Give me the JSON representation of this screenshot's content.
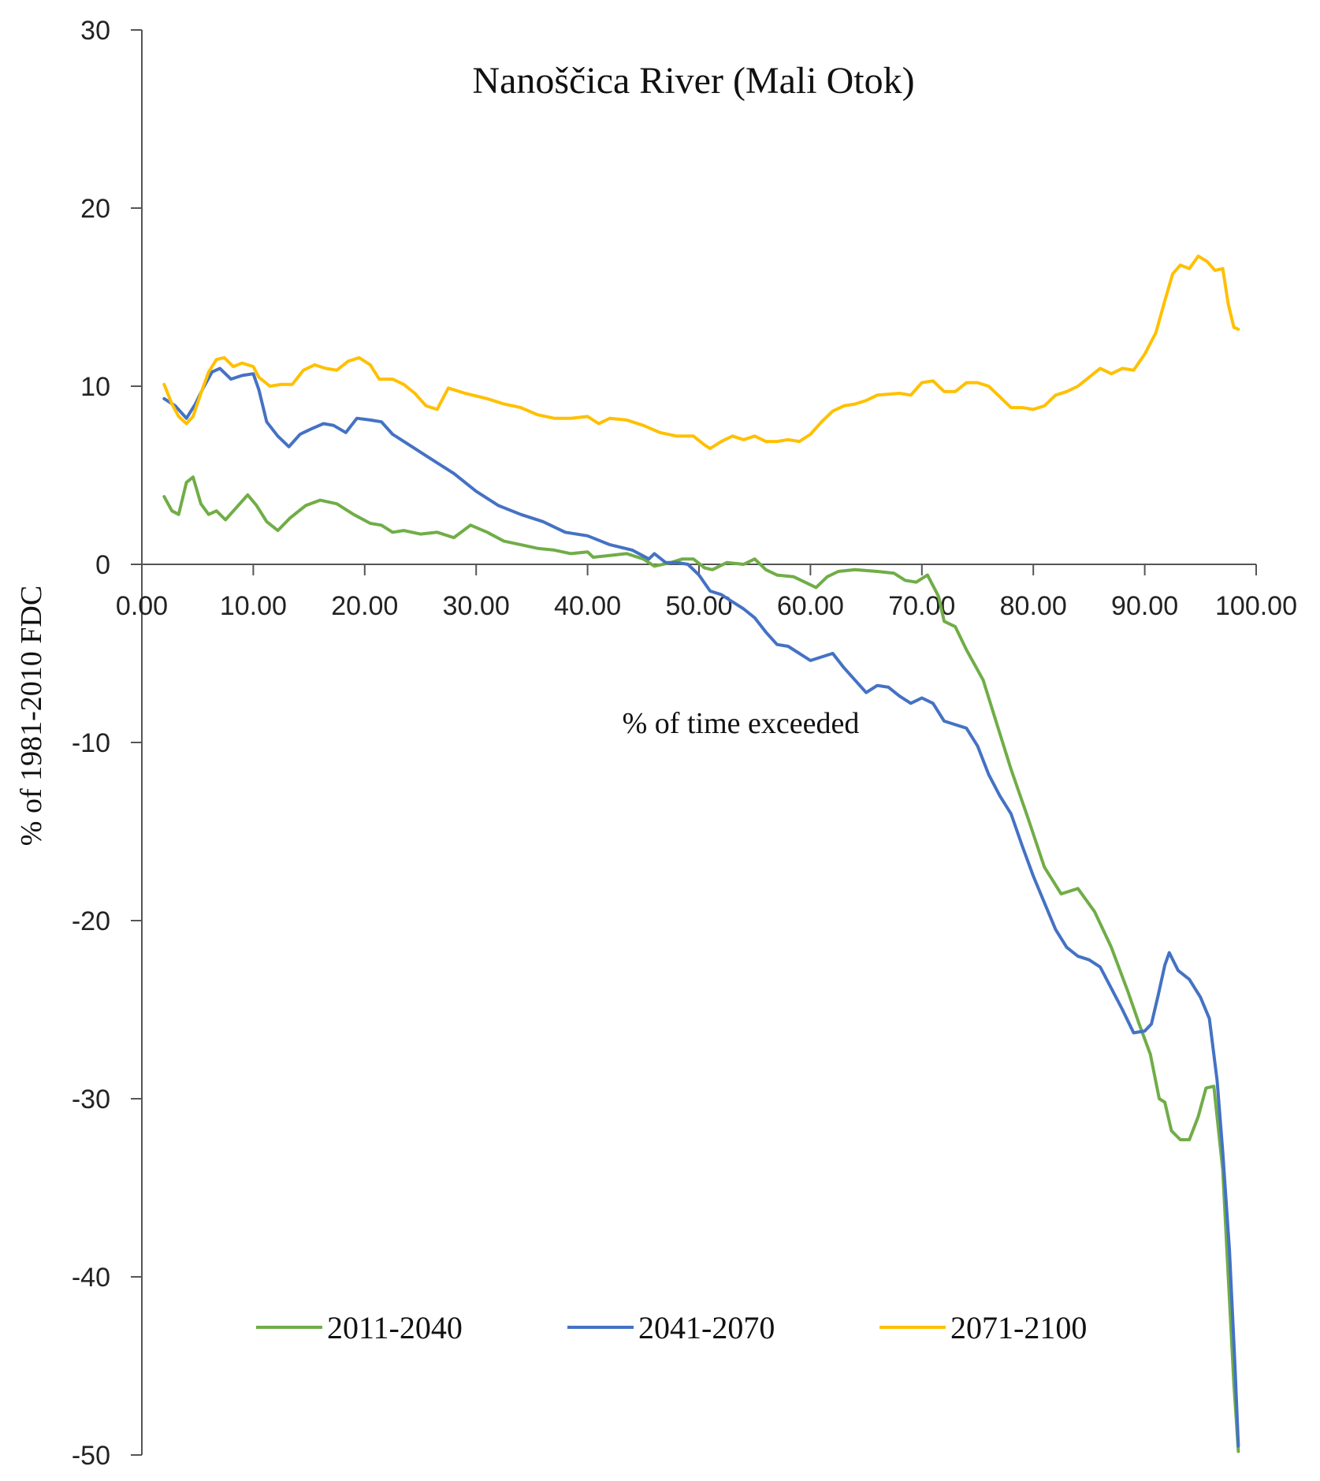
{
  "chart_data": {
    "type": "line",
    "title": "Nanoščica River (Mali Otok)",
    "xlabel": "% of time exceeded",
    "ylabel": "% of 1981-2010 FDC",
    "xlim": [
      0,
      100
    ],
    "ylim": [
      -50,
      30
    ],
    "x_ticks": [
      "0.00",
      "10.00",
      "20.00",
      "30.00",
      "40.00",
      "50.00",
      "60.00",
      "70.00",
      "80.00",
      "90.00",
      "100.00"
    ],
    "y_ticks": [
      "30",
      "20",
      "10",
      "0",
      "-10",
      "-20",
      "-30",
      "-40",
      "-50"
    ],
    "legend_position": "bottom",
    "series": [
      {
        "name": "2011-2040",
        "color": "#70ad47",
        "points": [
          [
            2,
            3.8
          ],
          [
            2.7,
            3.0
          ],
          [
            3.3,
            2.8
          ],
          [
            4,
            4.6
          ],
          [
            4.6,
            4.9
          ],
          [
            5.3,
            3.4
          ],
          [
            6,
            2.8
          ],
          [
            6.7,
            3.0
          ],
          [
            7.5,
            2.5
          ],
          [
            8.5,
            3.2
          ],
          [
            9.5,
            3.9
          ],
          [
            10.3,
            3.3
          ],
          [
            11.2,
            2.4
          ],
          [
            12.2,
            1.9
          ],
          [
            13.3,
            2.6
          ],
          [
            14.7,
            3.3
          ],
          [
            16,
            3.6
          ],
          [
            17.5,
            3.4
          ],
          [
            19,
            2.8
          ],
          [
            20.5,
            2.3
          ],
          [
            21.5,
            2.2
          ],
          [
            22.5,
            1.8
          ],
          [
            23.5,
            1.9
          ],
          [
            25,
            1.7
          ],
          [
            26.5,
            1.8
          ],
          [
            28,
            1.5
          ],
          [
            29.5,
            2.2
          ],
          [
            31,
            1.8
          ],
          [
            32.5,
            1.3
          ],
          [
            34,
            1.1
          ],
          [
            35.5,
            0.9
          ],
          [
            37,
            0.8
          ],
          [
            38.5,
            0.6
          ],
          [
            40,
            0.7
          ],
          [
            40.5,
            0.4
          ],
          [
            42,
            0.5
          ],
          [
            43.5,
            0.6
          ],
          [
            45,
            0.3
          ],
          [
            46,
            -0.1
          ],
          [
            47.5,
            0.1
          ],
          [
            48.5,
            0.3
          ],
          [
            49.5,
            0.3
          ],
          [
            50.5,
            -0.2
          ],
          [
            51.2,
            -0.3
          ],
          [
            52.5,
            0.1
          ],
          [
            54,
            0.0
          ],
          [
            55,
            0.3
          ],
          [
            56,
            -0.3
          ],
          [
            57,
            -0.6
          ],
          [
            58.5,
            -0.7
          ],
          [
            59.5,
            -1.0
          ],
          [
            60.5,
            -1.3
          ],
          [
            61.5,
            -0.7
          ],
          [
            62.5,
            -0.4
          ],
          [
            64,
            -0.3
          ],
          [
            66,
            -0.4
          ],
          [
            67.5,
            -0.5
          ],
          [
            68.5,
            -0.9
          ],
          [
            69.5,
            -1.0
          ],
          [
            70.5,
            -0.6
          ],
          [
            71.5,
            -1.8
          ],
          [
            72,
            -3.2
          ],
          [
            73,
            -3.5
          ],
          [
            74,
            -4.8
          ],
          [
            75.5,
            -6.5
          ],
          [
            76.5,
            -8.5
          ],
          [
            78,
            -11.5
          ],
          [
            79.5,
            -14.2
          ],
          [
            81,
            -17.0
          ],
          [
            82.5,
            -18.5
          ],
          [
            84,
            -18.2
          ],
          [
            85.5,
            -19.5
          ],
          [
            87,
            -21.5
          ],
          [
            88.5,
            -24.0
          ],
          [
            89.5,
            -25.8
          ],
          [
            90.5,
            -27.5
          ],
          [
            91.3,
            -30.0
          ],
          [
            91.8,
            -30.2
          ],
          [
            92.4,
            -31.8
          ],
          [
            93.2,
            -32.3
          ],
          [
            94,
            -32.3
          ],
          [
            94.8,
            -31.0
          ],
          [
            95.5,
            -29.4
          ],
          [
            96.2,
            -29.3
          ],
          [
            97,
            -34.0
          ],
          [
            97.5,
            -40.0
          ],
          [
            98,
            -46.0
          ],
          [
            98.4,
            -49.8
          ]
        ]
      },
      {
        "name": "2041-2070",
        "color": "#4472c4",
        "points": [
          [
            2,
            9.3
          ],
          [
            3,
            8.9
          ],
          [
            4,
            8.2
          ],
          [
            4.8,
            9.0
          ],
          [
            5.5,
            9.9
          ],
          [
            6.3,
            10.8
          ],
          [
            7,
            11.0
          ],
          [
            8,
            10.4
          ],
          [
            9,
            10.6
          ],
          [
            10,
            10.7
          ],
          [
            10.5,
            9.8
          ],
          [
            11.2,
            8.0
          ],
          [
            12.2,
            7.2
          ],
          [
            13.2,
            6.6
          ],
          [
            14.2,
            7.3
          ],
          [
            15.2,
            7.6
          ],
          [
            16.3,
            7.9
          ],
          [
            17.2,
            7.8
          ],
          [
            18.3,
            7.4
          ],
          [
            19.3,
            8.2
          ],
          [
            20.5,
            8.1
          ],
          [
            21.5,
            8.0
          ],
          [
            22.5,
            7.3
          ],
          [
            24,
            6.7
          ],
          [
            26,
            5.9
          ],
          [
            28,
            5.1
          ],
          [
            30,
            4.1
          ],
          [
            32,
            3.3
          ],
          [
            34,
            2.8
          ],
          [
            36,
            2.4
          ],
          [
            38,
            1.8
          ],
          [
            40,
            1.6
          ],
          [
            42,
            1.1
          ],
          [
            44,
            0.8
          ],
          [
            45.5,
            0.3
          ],
          [
            46,
            0.6
          ],
          [
            47,
            0.1
          ],
          [
            48,
            0.1
          ],
          [
            49,
            0.0
          ],
          [
            50,
            -0.6
          ],
          [
            51,
            -1.5
          ],
          [
            52,
            -1.7
          ],
          [
            53,
            -2.1
          ],
          [
            54,
            -2.5
          ],
          [
            55,
            -3.0
          ],
          [
            56,
            -3.8
          ],
          [
            57,
            -4.5
          ],
          [
            58,
            -4.6
          ],
          [
            59,
            -5.0
          ],
          [
            60,
            -5.4
          ],
          [
            61,
            -5.2
          ],
          [
            62,
            -5.0
          ],
          [
            63,
            -5.8
          ],
          [
            64,
            -6.5
          ],
          [
            65,
            -7.2
          ],
          [
            66,
            -6.8
          ],
          [
            67,
            -6.9
          ],
          [
            68,
            -7.4
          ],
          [
            69,
            -7.8
          ],
          [
            70,
            -7.5
          ],
          [
            71,
            -7.8
          ],
          [
            72,
            -8.8
          ],
          [
            73,
            -9.0
          ],
          [
            74,
            -9.2
          ],
          [
            75,
            -10.2
          ],
          [
            76,
            -11.8
          ],
          [
            77,
            -13.0
          ],
          [
            78,
            -14.0
          ],
          [
            79,
            -15.8
          ],
          [
            80,
            -17.5
          ],
          [
            81,
            -19.0
          ],
          [
            82,
            -20.5
          ],
          [
            83,
            -21.5
          ],
          [
            84,
            -22.0
          ],
          [
            85,
            -22.2
          ],
          [
            86,
            -22.6
          ],
          [
            87,
            -23.8
          ],
          [
            88,
            -25.0
          ],
          [
            89,
            -26.3
          ],
          [
            90,
            -26.2
          ],
          [
            90.6,
            -25.8
          ],
          [
            91.2,
            -24.2
          ],
          [
            91.8,
            -22.5
          ],
          [
            92.2,
            -21.8
          ],
          [
            93,
            -22.8
          ],
          [
            94,
            -23.3
          ],
          [
            95,
            -24.3
          ],
          [
            95.8,
            -25.5
          ],
          [
            96.5,
            -29.0
          ],
          [
            97,
            -33.0
          ],
          [
            97.6,
            -38.5
          ],
          [
            98.1,
            -45.0
          ],
          [
            98.4,
            -49.5
          ]
        ]
      },
      {
        "name": "2071-2100",
        "color": "#ffc000",
        "points": [
          [
            2,
            10.1
          ],
          [
            2.7,
            9.0
          ],
          [
            3.3,
            8.3
          ],
          [
            4,
            7.9
          ],
          [
            4.6,
            8.3
          ],
          [
            5.3,
            9.6
          ],
          [
            6,
            10.8
          ],
          [
            6.7,
            11.5
          ],
          [
            7.4,
            11.6
          ],
          [
            8.2,
            11.1
          ],
          [
            9,
            11.3
          ],
          [
            10,
            11.1
          ],
          [
            10.5,
            10.5
          ],
          [
            11.5,
            10.0
          ],
          [
            12.5,
            10.1
          ],
          [
            13.5,
            10.1
          ],
          [
            14.5,
            10.9
          ],
          [
            15.5,
            11.2
          ],
          [
            16.5,
            11.0
          ],
          [
            17.5,
            10.9
          ],
          [
            18.5,
            11.4
          ],
          [
            19.5,
            11.6
          ],
          [
            20.5,
            11.2
          ],
          [
            21.3,
            10.4
          ],
          [
            22.5,
            10.4
          ],
          [
            23.5,
            10.1
          ],
          [
            24.5,
            9.6
          ],
          [
            25.5,
            8.9
          ],
          [
            26.5,
            8.7
          ],
          [
            27.5,
            9.9
          ],
          [
            29,
            9.6
          ],
          [
            31,
            9.3
          ],
          [
            32.5,
            9.0
          ],
          [
            34,
            8.8
          ],
          [
            35.5,
            8.4
          ],
          [
            37,
            8.2
          ],
          [
            38.5,
            8.2
          ],
          [
            40,
            8.3
          ],
          [
            41,
            7.9
          ],
          [
            42,
            8.2
          ],
          [
            43.5,
            8.1
          ],
          [
            45,
            7.8
          ],
          [
            46.5,
            7.4
          ],
          [
            48,
            7.2
          ],
          [
            49.5,
            7.2
          ],
          [
            50.5,
            6.7
          ],
          [
            51,
            6.5
          ],
          [
            52,
            6.9
          ],
          [
            53,
            7.2
          ],
          [
            54,
            7.0
          ],
          [
            55,
            7.2
          ],
          [
            56,
            6.9
          ],
          [
            57,
            6.9
          ],
          [
            58,
            7.0
          ],
          [
            59,
            6.9
          ],
          [
            60,
            7.3
          ],
          [
            61,
            8.0
          ],
          [
            62,
            8.6
          ],
          [
            63,
            8.9
          ],
          [
            64,
            9.0
          ],
          [
            65,
            9.2
          ],
          [
            66,
            9.5
          ],
          [
            68,
            9.6
          ],
          [
            69,
            9.5
          ],
          [
            70,
            10.2
          ],
          [
            71,
            10.3
          ],
          [
            72,
            9.7
          ],
          [
            73,
            9.7
          ],
          [
            74,
            10.2
          ],
          [
            75,
            10.2
          ],
          [
            76,
            10.0
          ],
          [
            77,
            9.4
          ],
          [
            78,
            8.8
          ],
          [
            79,
            8.8
          ],
          [
            80,
            8.7
          ],
          [
            81,
            8.9
          ],
          [
            82,
            9.5
          ],
          [
            83,
            9.7
          ],
          [
            84,
            10.0
          ],
          [
            85,
            10.5
          ],
          [
            86,
            11.0
          ],
          [
            87,
            10.7
          ],
          [
            88,
            11.0
          ],
          [
            89,
            10.9
          ],
          [
            90,
            11.8
          ],
          [
            91,
            13.0
          ],
          [
            91.8,
            14.8
          ],
          [
            92.5,
            16.3
          ],
          [
            93.2,
            16.8
          ],
          [
            94,
            16.6
          ],
          [
            94.8,
            17.3
          ],
          [
            95.6,
            17.0
          ],
          [
            96.3,
            16.5
          ],
          [
            97,
            16.6
          ],
          [
            97.5,
            14.6
          ],
          [
            98,
            13.3
          ],
          [
            98.4,
            13.2
          ]
        ]
      }
    ]
  }
}
